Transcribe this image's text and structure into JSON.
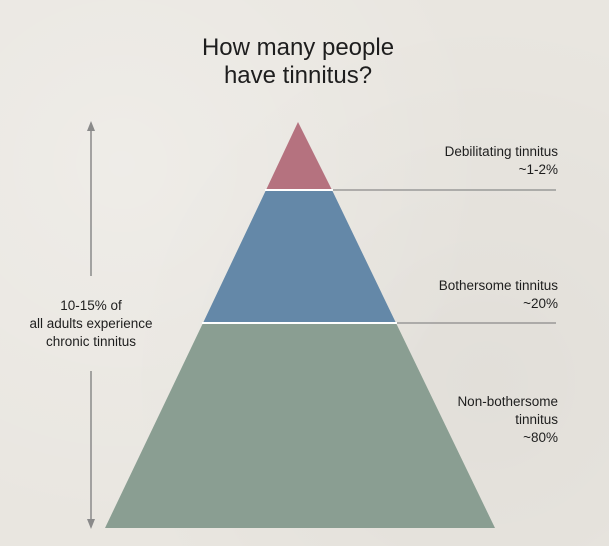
{
  "title": {
    "line1": "How many people",
    "line2": "have tinnitus?"
  },
  "left_note": {
    "line1": "10-15% of",
    "line2": "all adults experience",
    "line3": "chronic tinnitus"
  },
  "tiers": [
    {
      "line1": "Debilitating tinnitus",
      "line2": "~1-2%",
      "color": "#b5727f"
    },
    {
      "line1": "Bothersome tinnitus",
      "line2": "~20%",
      "color": "#6488a8"
    },
    {
      "line1": "Non-bothersome",
      "line2": "tinnitus",
      "line3": "~80%",
      "color": "#8a9e92"
    }
  ],
  "colors": {
    "background": "#e9e6e0",
    "leader_line": "#8a8a8a",
    "arrow": "#8a8a8a"
  }
}
